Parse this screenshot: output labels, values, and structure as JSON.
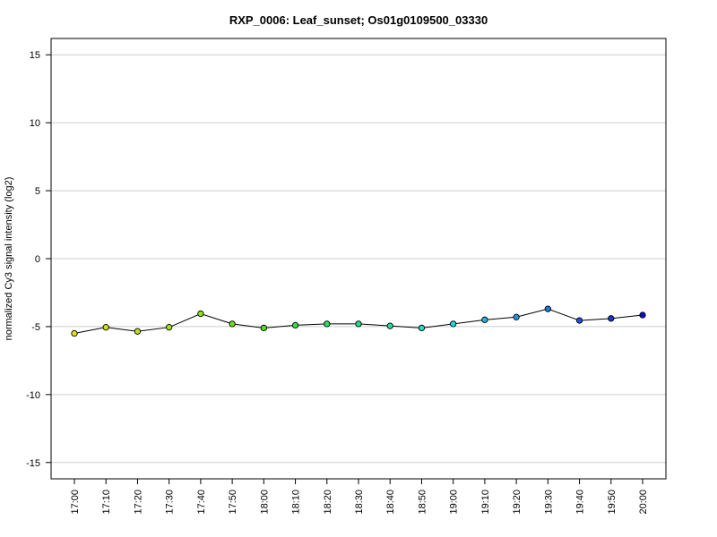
{
  "chart_data": {
    "type": "line",
    "title": "RXP_0006: Leaf_sunset; Os01g0109500_03330",
    "xlabel": "",
    "ylabel": "normalized Cy3 signal intensity (log2)",
    "ylim": [
      -16.2,
      16.2
    ],
    "yticks": [
      15,
      10,
      5,
      0,
      -5,
      -10,
      -15
    ],
    "grid": true,
    "categories": [
      "17:00",
      "17:10",
      "17:20",
      "17:30",
      "17:40",
      "17:50",
      "18:00",
      "18:10",
      "18:20",
      "18:30",
      "18:40",
      "18:50",
      "19:00",
      "19:10",
      "19:20",
      "19:30",
      "19:40",
      "19:50",
      "20:00"
    ],
    "values": [
      -5.5,
      -5.05,
      -5.35,
      -5.05,
      -4.05,
      -4.8,
      -5.1,
      -4.9,
      -4.8,
      -4.8,
      -4.95,
      -5.1,
      -4.8,
      -4.5,
      -4.3,
      -3.7,
      -4.55,
      -4.4,
      -4.15
    ],
    "point_colors": [
      "#e0e020",
      "#cde01e",
      "#bde01c",
      "#a8e01a",
      "#8ee018",
      "#6ee018",
      "#4de020",
      "#33e040",
      "#25e060",
      "#20e080",
      "#20e0a0",
      "#20e0c0",
      "#20d8e0",
      "#20b8e0",
      "#2098e0",
      "#2078e0",
      "#2050e0",
      "#1a30d8",
      "#1010c8"
    ],
    "line_color": "#000000"
  }
}
